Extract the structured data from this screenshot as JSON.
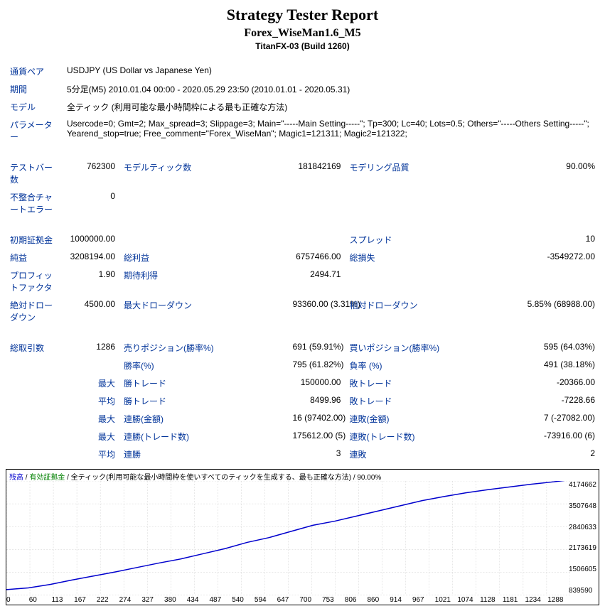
{
  "header": {
    "title": "Strategy Tester Report",
    "subtitle": "Forex_WiseMan1.6_M5",
    "build": "TitanFX-03 (Build 1260)"
  },
  "info": {
    "pair_lbl": "通貨ペア",
    "pair": "USDJPY (US Dollar vs Japanese Yen)",
    "period_lbl": "期間",
    "period": "5分足(M5) 2010.01.04 00:00 - 2020.05.29 23:50 (2010.01.01 - 2020.05.31)",
    "model_lbl": "モデル",
    "model": "全ティック (利用可能な最小時間枠による最も正確な方法)",
    "param_lbl": "パラメーター",
    "param": "Usercode=0; Gmt=2; Max_spread=3; Slippage=3; Main=\"-----Main Setting-----\"; Tp=300; Lc=40; Lots=0.5; Others=\"-----Others Setting-----\"; Yearend_stop=true; Free_comment=\"Forex_WiseMan\"; Magic1=121311; Magic2=121322;"
  },
  "stats": {
    "bars_lbl": "テストバー数",
    "bars": "762300",
    "ticks_lbl": "モデルティック数",
    "ticks": "181842169",
    "quality_lbl": "モデリング品質",
    "quality": "90.00%",
    "mismatch_lbl": "不整合チャートエラー",
    "mismatch": "0",
    "deposit_lbl": "初期証拠金",
    "deposit": "1000000.00",
    "spread_lbl": "スプレッド",
    "spread": "10",
    "netprofit_lbl": "純益",
    "netprofit": "3208194.00",
    "grossprofit_lbl": "総利益",
    "grossprofit": "6757466.00",
    "grossloss_lbl": "総損失",
    "grossloss": "-3549272.00",
    "pf_lbl": "プロフィットファクタ",
    "pf": "1.90",
    "expected_lbl": "期待利得",
    "expected": "2494.71",
    "absdd_lbl": "絶対ドローダウン",
    "absdd": "4500.00",
    "maxdd_lbl": "最大ドローダウン",
    "maxdd": "93360.00 (3.31%)",
    "reldd_lbl": "相対ドローダウン",
    "reldd": "5.85% (68988.00)",
    "total_lbl": "総取引数",
    "total": "1286",
    "short_lbl": "売りポジション(勝率%)",
    "short": "691 (59.91%)",
    "long_lbl": "買いポジション(勝率%)",
    "long": "595 (64.03%)",
    "win_lbl": "勝率(%)",
    "win": "795 (61.82%)",
    "loss_lbl": "負率 (%)",
    "loss": "491 (38.18%)",
    "max_pre": "最大",
    "avg_pre": "平均",
    "wintrade_lbl": "勝トレード",
    "wintrade_max": "150000.00",
    "wintrade_avg": "8499.96",
    "losstrade_lbl": "敗トレード",
    "losstrade_max": "-20366.00",
    "losstrade_avg": "-7228.66",
    "conswin_amt_lbl": "連勝(金額)",
    "conswin_amt": "16 (97402.00)",
    "consloss_amt_lbl": "連敗(金額)",
    "consloss_amt": "7 (-27082.00)",
    "conswin_cnt_lbl": "連勝(トレード数)",
    "conswin_cnt": "175612.00 (5)",
    "consloss_cnt_lbl": "連敗(トレード数)",
    "consloss_cnt": "-73916.00 (6)",
    "avgcons_win_lbl": "連勝",
    "avgcons_win": "3",
    "avgcons_loss_lbl": "連敗",
    "avgcons_loss": "2"
  },
  "chart": {
    "legend_balance": "残高",
    "legend_equity": "有効証拠金",
    "legend_rest": " / 全ティック(利用可能な最小時間枠を使いすべてのティックを生成する、最も正確な方法) / 90.00%",
    "ylabels": [
      "4174662",
      "3507648",
      "2840633",
      "2173619",
      "1506605",
      "839590"
    ],
    "xlabels": [
      "0",
      "60",
      "113",
      "167",
      "222",
      "274",
      "327",
      "380",
      "434",
      "487",
      "540",
      "594",
      "647",
      "700",
      "753",
      "806",
      "860",
      "914",
      "967",
      "1021",
      "1074",
      "1128",
      "1181",
      "1234",
      "1288"
    ],
    "line_color": "#0000cd",
    "grid_color": "#d0d0d0",
    "bg": "#ffffff",
    "ylim": [
      839590,
      4174662
    ],
    "xlim": [
      0,
      1288
    ],
    "points": [
      [
        0,
        1000000
      ],
      [
        50,
        1050000
      ],
      [
        100,
        1150000
      ],
      [
        150,
        1280000
      ],
      [
        200,
        1400000
      ],
      [
        250,
        1520000
      ],
      [
        300,
        1650000
      ],
      [
        350,
        1780000
      ],
      [
        400,
        1900000
      ],
      [
        450,
        2050000
      ],
      [
        500,
        2200000
      ],
      [
        550,
        2380000
      ],
      [
        600,
        2520000
      ],
      [
        650,
        2700000
      ],
      [
        700,
        2880000
      ],
      [
        750,
        3000000
      ],
      [
        800,
        3150000
      ],
      [
        850,
        3300000
      ],
      [
        900,
        3450000
      ],
      [
        950,
        3600000
      ],
      [
        1000,
        3720000
      ],
      [
        1050,
        3830000
      ],
      [
        1100,
        3920000
      ],
      [
        1150,
        4000000
      ],
      [
        1200,
        4080000
      ],
      [
        1250,
        4150000
      ],
      [
        1288,
        4208194
      ]
    ]
  }
}
